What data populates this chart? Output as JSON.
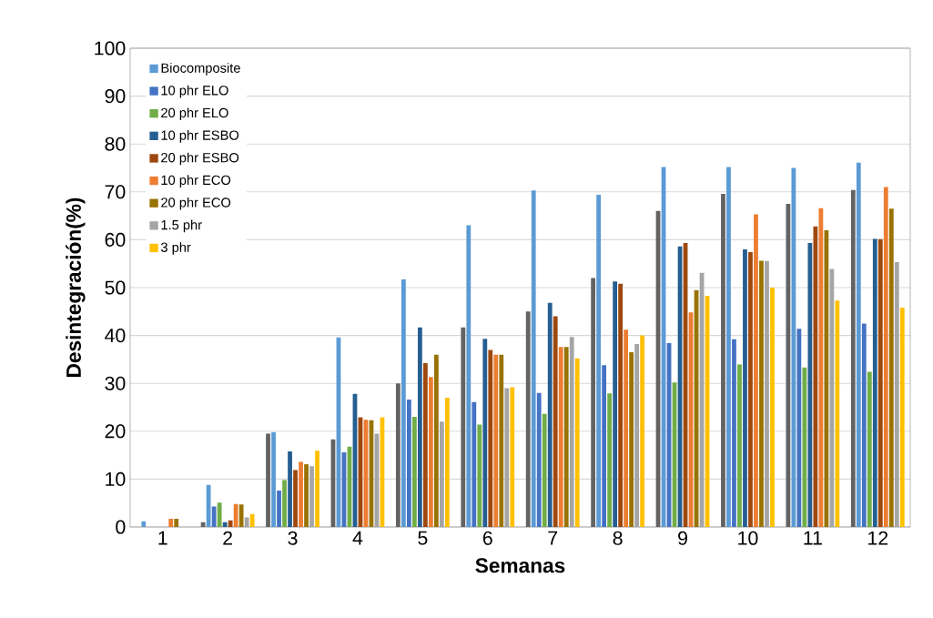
{
  "chart_data": {
    "type": "bar",
    "xlabel": "Semanas",
    "ylabel": "Desintegración(%)",
    "categories": [
      "1",
      "2",
      "3",
      "4",
      "5",
      "6",
      "7",
      "8",
      "9",
      "10",
      "11",
      "12"
    ],
    "ylim": [
      0,
      100
    ],
    "yticks": [
      0,
      10,
      20,
      30,
      40,
      50,
      60,
      70,
      80,
      90,
      100
    ],
    "grid": "y",
    "legend": "top left",
    "series": [
      {
        "color": "#636363",
        "values": [
          0,
          1,
          19.5,
          18.3,
          30,
          41.7,
          45,
          52,
          66,
          69.6,
          67.5,
          70.4
        ]
      },
      {
        "name": "Biocomposite",
        "color": "#5b9bd5",
        "values": [
          1.2,
          8.8,
          19.8,
          39.6,
          51.7,
          63,
          70.3,
          69.4,
          75.2,
          75.2,
          75,
          76.1
        ]
      },
      {
        "name": "10 phr ELO",
        "color": "#4472c4",
        "values": [
          0,
          4.3,
          7.6,
          15.6,
          26.6,
          26.1,
          28,
          33.8,
          38.4,
          39.2,
          41.4,
          42.5
        ]
      },
      {
        "name": "20 phr ELO",
        "color": "#70ad47",
        "values": [
          0,
          5.1,
          9.8,
          16.8,
          23,
          21.4,
          23.6,
          27.9,
          30.2,
          34,
          33.3,
          32.4
        ]
      },
      {
        "name": "10 phr ESBO",
        "color": "#255e91",
        "values": [
          0,
          1,
          15.8,
          27.8,
          41.7,
          39.3,
          46.8,
          51.3,
          58.6,
          58,
          59.3,
          60.2
        ]
      },
      {
        "name": "20 phr ESBO",
        "color": "#9e480e",
        "values": [
          0,
          1.4,
          11.9,
          22.9,
          34.2,
          37,
          44,
          50.8,
          59.3,
          57.4,
          62.8,
          60.1
        ]
      },
      {
        "name": "10 phr ECO",
        "color": "#ed7d31",
        "values": [
          1.7,
          4.8,
          13.6,
          22.4,
          31.3,
          36,
          37.6,
          41.2,
          44.8,
          65.3,
          66.6,
          71
        ]
      },
      {
        "name": "20 phr ECO",
        "color": "#997300",
        "values": [
          1.7,
          4.7,
          13.1,
          22.3,
          36,
          36,
          37.6,
          36.5,
          49.5,
          55.6,
          62,
          66.5
        ]
      },
      {
        "name": "1.5 phr",
        "color": "#a5a5a5",
        "values": [
          0,
          2,
          12.7,
          19.5,
          22,
          29,
          39.7,
          38.2,
          53.1,
          55.6,
          53.9,
          55.3
        ]
      },
      {
        "name": "3 phr",
        "color": "#ffc000",
        "values": [
          0,
          2.7,
          15.9,
          22.9,
          27,
          29.2,
          35.2,
          40,
          48.3,
          50,
          47.3,
          45.8
        ]
      }
    ]
  }
}
